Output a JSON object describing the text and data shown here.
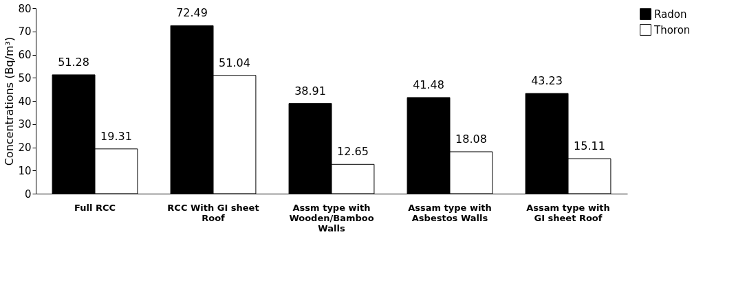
{
  "chart_data": {
    "type": "bar",
    "ylabel": "Concentrations (Bq/m³)",
    "categories": [
      "Full RCC",
      "RCC With GI sheet\nRoof",
      "Assm type with\nWooden/Bamboo\nWalls",
      "Assam type with\nAsbestos Walls",
      "Assam type with\nGI sheet Roof"
    ],
    "series": [
      {
        "name": "Radon",
        "color": "#000000",
        "values": [
          51.28,
          72.49,
          38.91,
          41.48,
          43.23
        ]
      },
      {
        "name": "Thoron",
        "color": "#ffffff",
        "values": [
          19.31,
          51.04,
          12.65,
          18.08,
          15.11
        ]
      }
    ],
    "ylim": [
      0,
      80
    ],
    "yticks": [
      0,
      10,
      20,
      30,
      40,
      50,
      60,
      70,
      80
    ],
    "data_labels": true,
    "grid": false,
    "legend": "right"
  }
}
